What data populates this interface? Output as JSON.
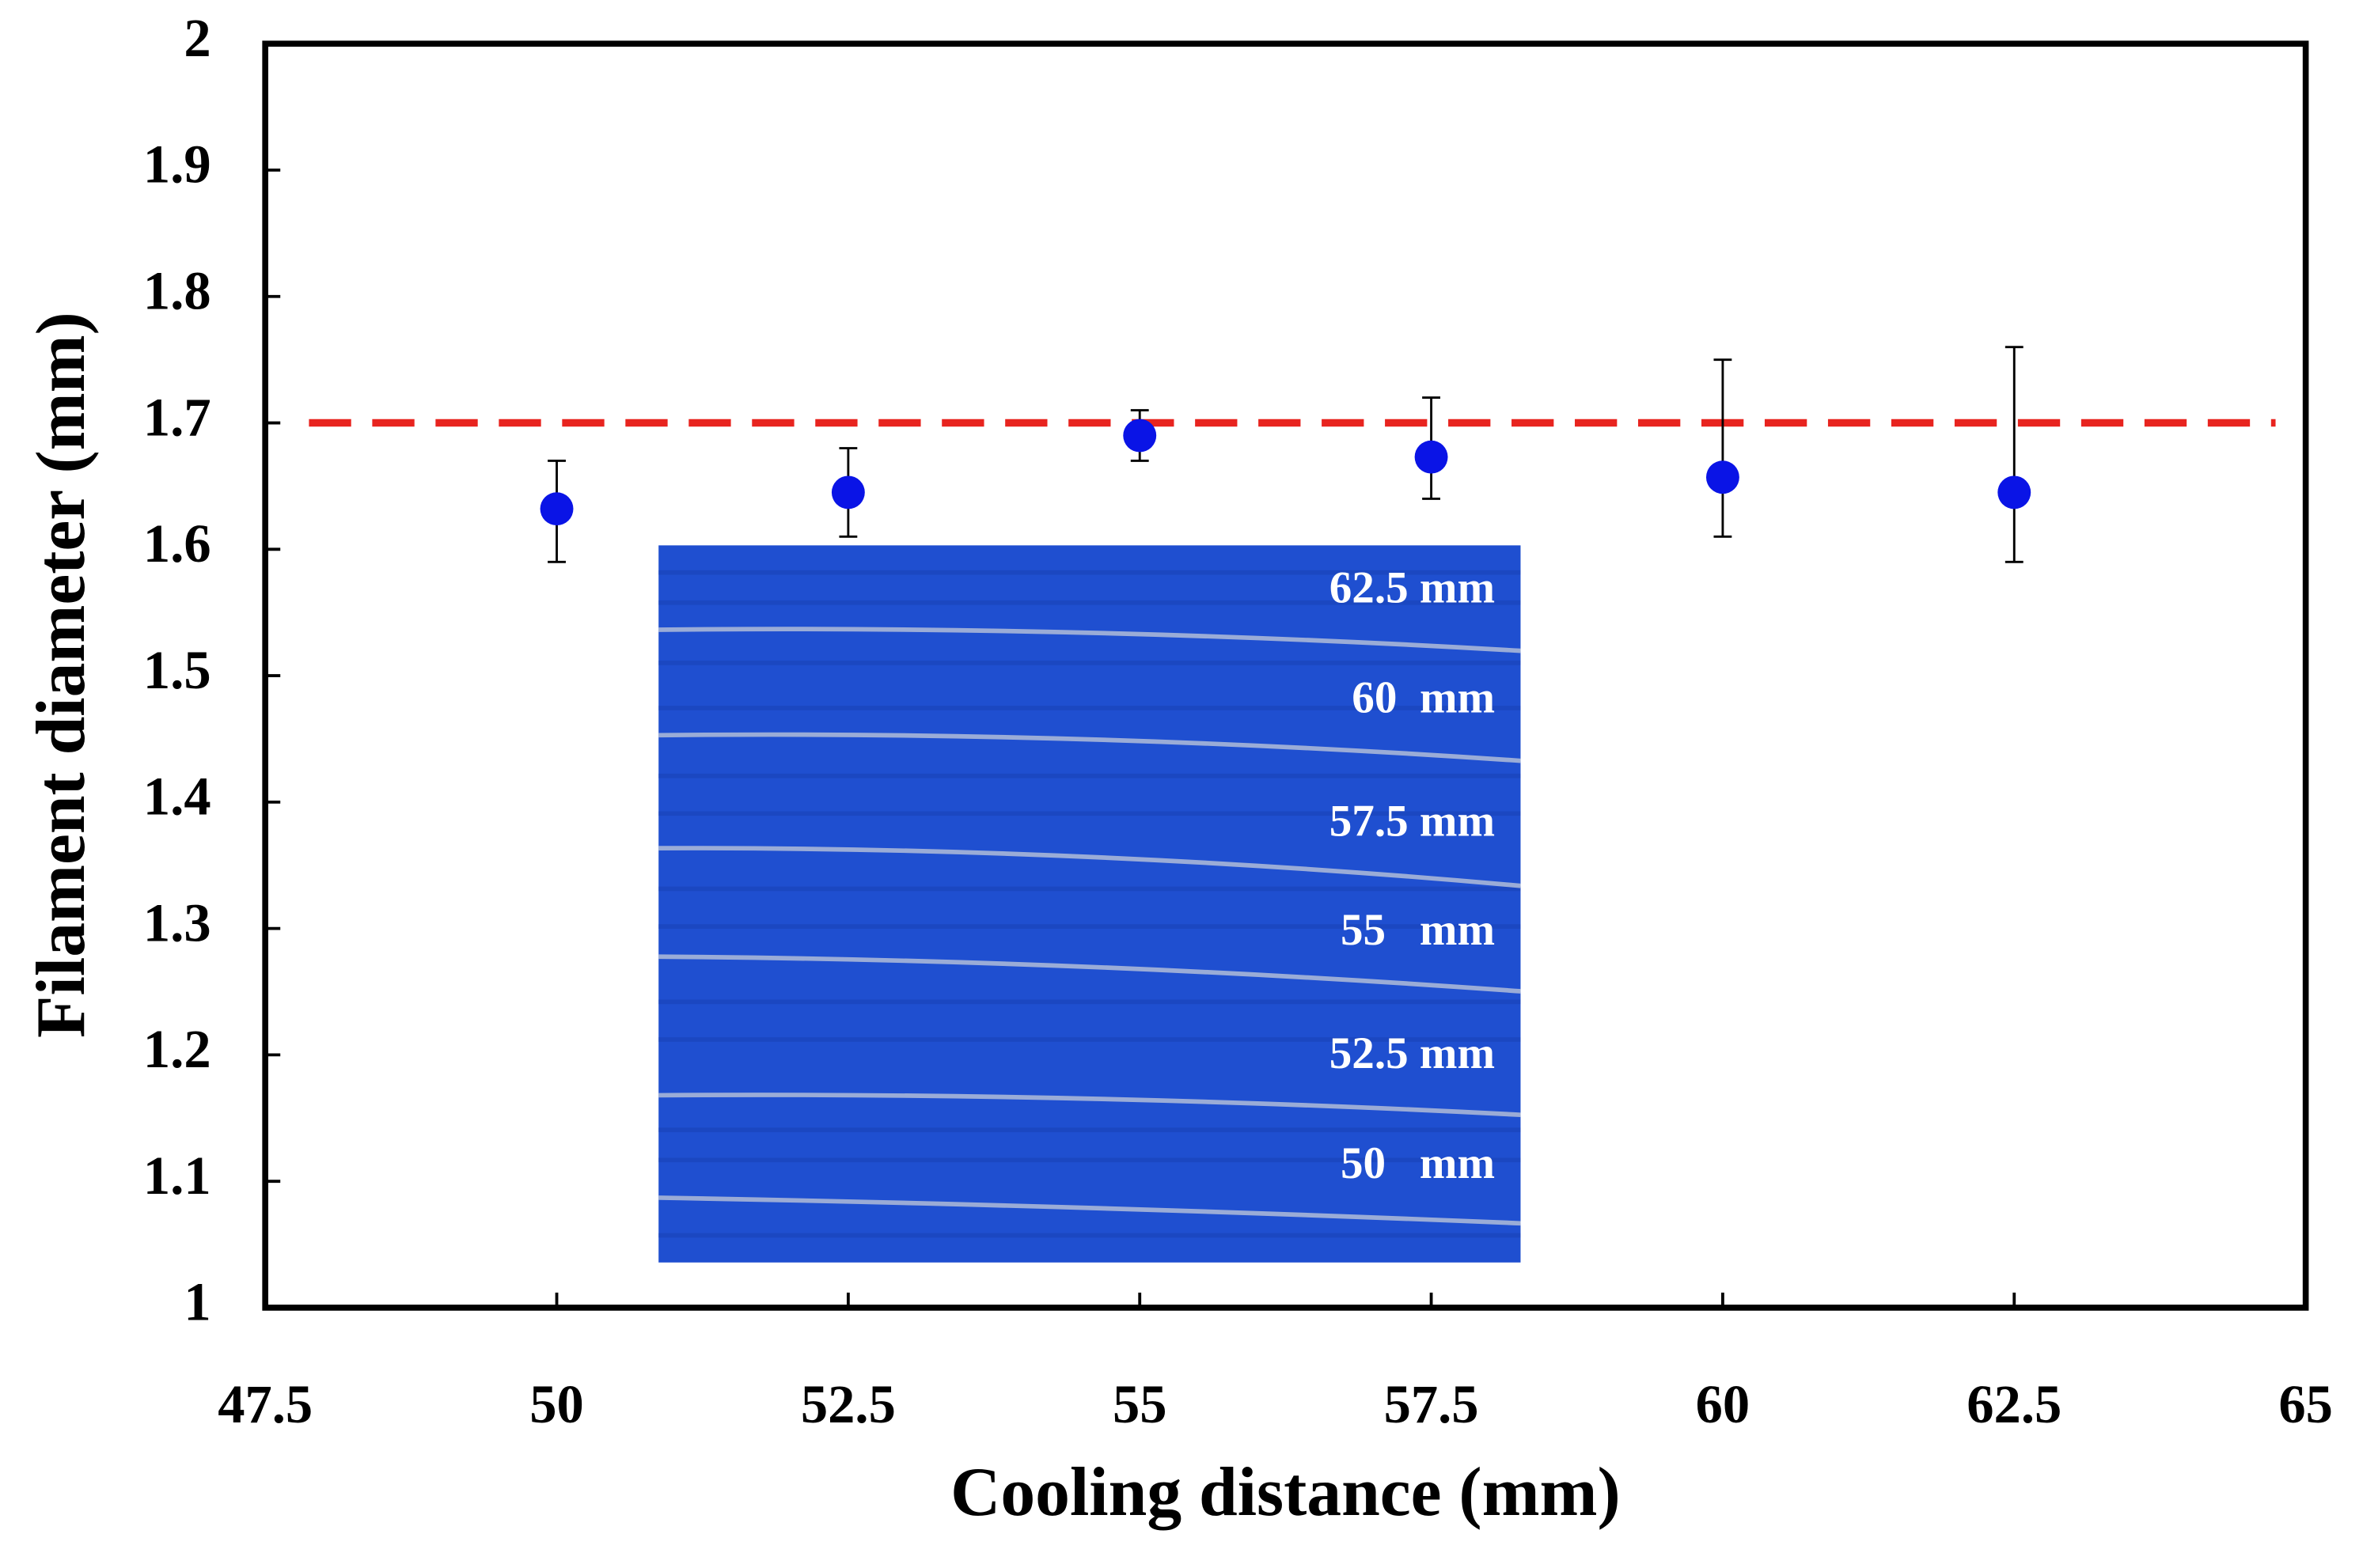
{
  "chart_data": {
    "type": "scatter",
    "x_label": "Cooling distance (mm)",
    "y_label": "Filament diameter (mm)",
    "x": [
      50,
      52.5,
      55,
      57.5,
      60,
      62.5
    ],
    "series": [
      {
        "color": "#0a14e6",
        "values": [
          1.632,
          1.645,
          1.69,
          1.673,
          1.657,
          1.645
        ],
        "error_lower": [
          0.042,
          0.035,
          0.02,
          0.033,
          0.047,
          0.055
        ],
        "error_upper": [
          0.038,
          0.035,
          0.02,
          0.047,
          0.093,
          0.115
        ]
      }
    ],
    "reference_line": {
      "value": 1.7,
      "color": "#e8241f"
    },
    "xlim": [
      47.5,
      65
    ],
    "xticks": [
      47.5,
      50,
      52.5,
      55,
      57.5,
      60,
      62.5,
      65
    ],
    "ylim": [
      1,
      2
    ],
    "yticks": [
      1,
      1.1,
      1.2,
      1.3,
      1.4,
      1.5,
      1.6,
      1.7,
      1.8,
      1.9,
      2
    ],
    "inset_labels": [
      "62.5 mm",
      "60  mm",
      "57.5 mm",
      "55   mm",
      "52.5 mm",
      "50   mm"
    ]
  }
}
